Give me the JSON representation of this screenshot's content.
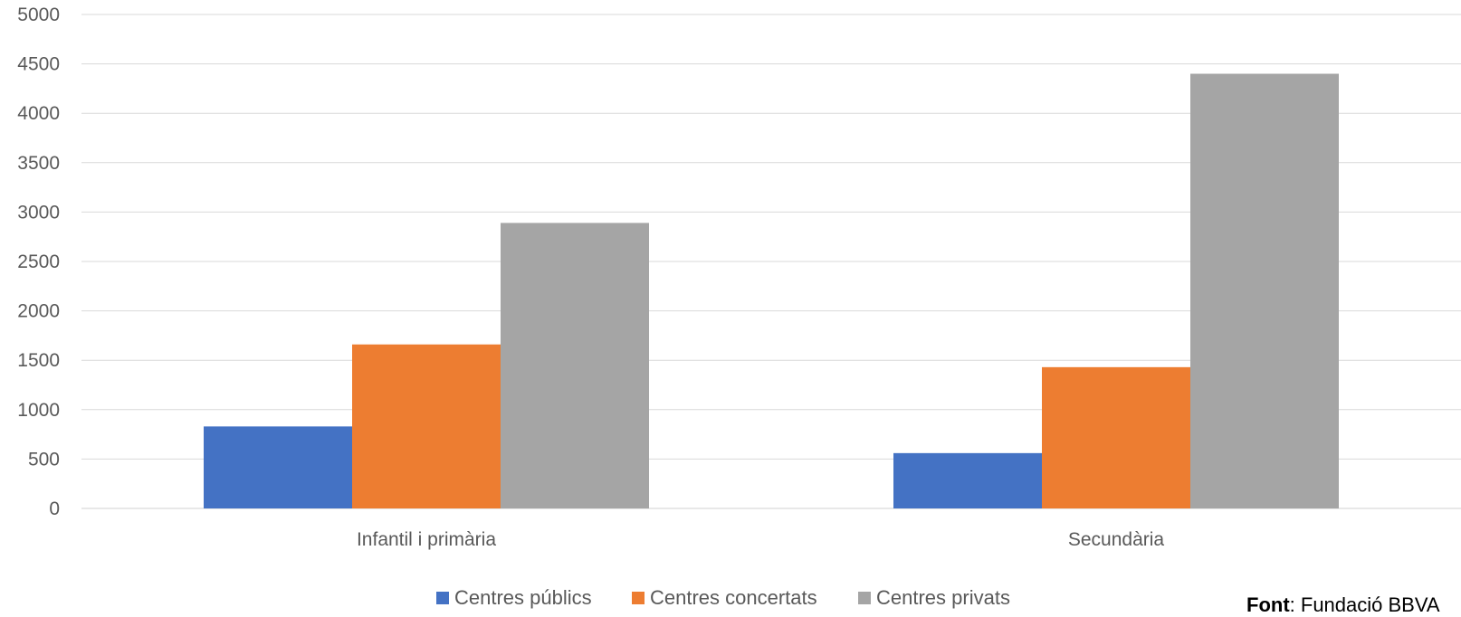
{
  "chart_data": {
    "type": "bar",
    "categories": [
      "Infantil i primària",
      "Secundària"
    ],
    "series": [
      {
        "name": "Centres públics",
        "values": [
          830,
          560
        ],
        "color": "#4472C4"
      },
      {
        "name": "Centres concertats",
        "values": [
          1660,
          1430
        ],
        "color": "#ED7D31"
      },
      {
        "name": "Centres privats",
        "values": [
          2890,
          4400
        ],
        "color": "#A5A5A5"
      }
    ],
    "yticks": [
      "0",
      "500",
      "1000",
      "1500",
      "2000",
      "2500",
      "3000",
      "3500",
      "4000",
      "4500",
      "5000"
    ],
    "ylim": [
      0,
      5000
    ],
    "grid": true,
    "legend_position": "bottom"
  },
  "source": {
    "label": "Font",
    "text": ": Fundació BBVA"
  }
}
